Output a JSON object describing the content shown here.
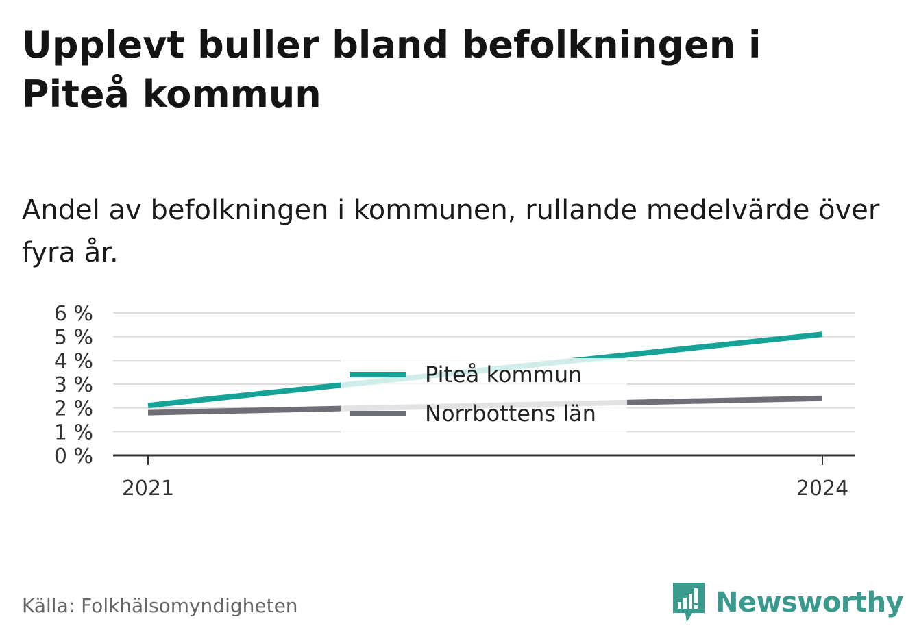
{
  "title": "Upplevt buller bland befolkningen i Piteå kommun",
  "subtitle": "Andel av befolkningen i kommunen, rullande medelvärde över fyra år.",
  "source": "Källa: Folkhälsomyndigheten",
  "brand": {
    "name": "Newsworthy",
    "icon": "newsworthy-logo-icon",
    "color": "#3a9a8e"
  },
  "chart_data": {
    "type": "line",
    "title": "Upplevt buller bland befolkningen i Piteå kommun",
    "subtitle": "Andel av befolkningen i kommunen, rullande medelvärde över fyra år.",
    "x": [
      2021,
      2024
    ],
    "x_tick_labels": [
      "2021",
      "2024"
    ],
    "y_ticks": [
      0,
      1,
      2,
      3,
      4,
      5,
      6
    ],
    "y_tick_labels": [
      "0 %",
      "1 %",
      "2 %",
      "3 %",
      "4 %",
      "5 %",
      "6 %"
    ],
    "ylim": [
      0,
      6
    ],
    "grid": true,
    "legend_position": "center",
    "series": [
      {
        "name": "Piteå kommun",
        "color": "#14a396",
        "values": [
          2.1,
          5.1
        ]
      },
      {
        "name": "Norrbottens län",
        "color": "#6e6e76",
        "values": [
          1.8,
          2.4
        ]
      }
    ]
  }
}
